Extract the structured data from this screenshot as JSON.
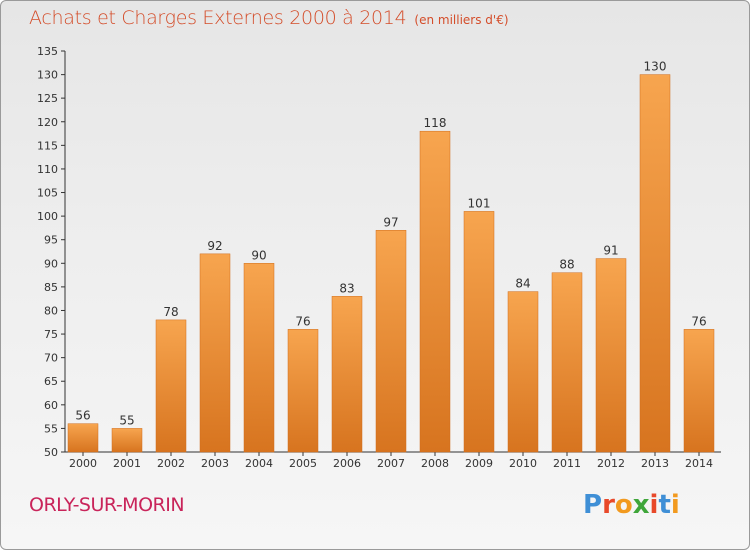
{
  "header": {
    "title": "Achats et Charges Externes 2000 à 2014",
    "unit": "(en milliers d'€)"
  },
  "footer": {
    "city": "ORLY-SUR-MORIN",
    "logo_letters": [
      "P",
      "r",
      "o",
      "x",
      "i",
      "t",
      "i"
    ],
    "logo_colors": [
      "#3f8fd6",
      "#e8492a",
      "#f29a1f",
      "#3fa63a",
      "#e8492a",
      "#3f8fd6",
      "#f29a1f"
    ]
  },
  "colors": {
    "bar_light": "#f7a54f",
    "bar_dark": "#d7741f",
    "title": "#d44d2a",
    "city": "#c9245a"
  },
  "chart_data": {
    "type": "bar",
    "title": "Achats et Charges Externes 2000 à 2014",
    "subtitle": "(en milliers d'€)",
    "categories": [
      "2000",
      "2001",
      "2002",
      "2003",
      "2004",
      "2005",
      "2006",
      "2007",
      "2008",
      "2009",
      "2010",
      "2011",
      "2012",
      "2013",
      "2014"
    ],
    "values": [
      56,
      55,
      78,
      92,
      90,
      76,
      83,
      97,
      118,
      101,
      84,
      88,
      91,
      130,
      76
    ],
    "ylim": [
      50,
      135
    ],
    "yticks": [
      50,
      55,
      60,
      65,
      70,
      75,
      80,
      85,
      90,
      95,
      100,
      105,
      110,
      115,
      120,
      125,
      130,
      135
    ],
    "grid": false,
    "data_labels": true
  }
}
